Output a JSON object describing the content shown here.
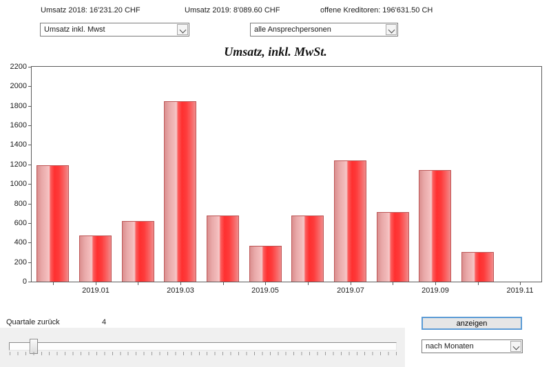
{
  "header": {
    "umsatz_2018": "Umsatz 2018: 16'231.20 CHF",
    "umsatz_2019": "Umsatz 2019: 8'089.60 CHF",
    "offene_kreditoren": "offene Kreditoren: 196'631.50 CH"
  },
  "filters": {
    "metric_select": "Umsatz inkl. Mwst",
    "persons_select": "alle Ansprechpersonen"
  },
  "chart_data": {
    "type": "bar",
    "title": "Umsatz, inkl. MwSt.",
    "categories": [
      "2018.12",
      "2019.01",
      "2019.02",
      "2019.03",
      "2019.04",
      "2019.05",
      "2019.06",
      "2019.07",
      "2019.08",
      "2019.09",
      "2019.10",
      "2019.11"
    ],
    "values": [
      1190,
      470,
      620,
      1850,
      680,
      370,
      680,
      1240,
      710,
      1140,
      300,
      0
    ],
    "x_axis_labels": [
      "2019.01",
      "2019.03",
      "2019.05",
      "2019.07",
      "2019.09",
      "2019.11"
    ],
    "y_ticks": [
      0,
      200,
      400,
      600,
      800,
      1000,
      1200,
      1400,
      1600,
      1800,
      2000,
      2200
    ],
    "ylim": [
      0,
      2200
    ],
    "grid": false,
    "legend": false,
    "bar_edge_color": "#bc5454",
    "bar_vivid_color": "#ff2f2f",
    "bar_light_color": "#f3bcbc"
  },
  "controls": {
    "quartale_label": "Quartale zurück",
    "quartale_value": "4",
    "anzeigen_button": "anzeigen",
    "granularity_select": "nach Monaten"
  }
}
